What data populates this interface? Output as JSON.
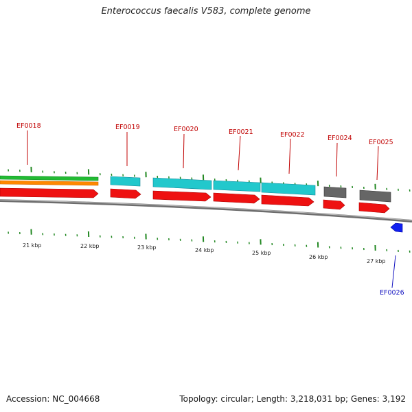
{
  "title": "Enterococcus faecalis V583, complete genome",
  "footer": {
    "accession": "Accession: NC_004668",
    "info": "Topology: circular; Length: 3,218,031 bp; Genes: 3,192"
  },
  "colors": {
    "forward_gene": "#ee1111",
    "reverse_gene": "#1020f0",
    "cyan_track": "#22c8cc",
    "gray_track": "#666666",
    "green_track": "#22bb33",
    "orange_track": "#ff8800",
    "tick": "#228822",
    "backbone": "#888888"
  },
  "scale_labels": [
    "21 kbp",
    "22 kbp",
    "23 kbp",
    "24 kbp",
    "25 kbp",
    "26 kbp",
    "27 kbp"
  ],
  "genes": [
    {
      "name": "EF0018",
      "strand": "forward"
    },
    {
      "name": "EF0019",
      "strand": "forward"
    },
    {
      "name": "EF0020",
      "strand": "forward"
    },
    {
      "name": "EF0021",
      "strand": "forward"
    },
    {
      "name": "EF0022",
      "strand": "forward"
    },
    {
      "name": "EF0024",
      "strand": "forward"
    },
    {
      "name": "EF0025",
      "strand": "forward"
    },
    {
      "name": "EF0026",
      "strand": "reverse"
    }
  ]
}
